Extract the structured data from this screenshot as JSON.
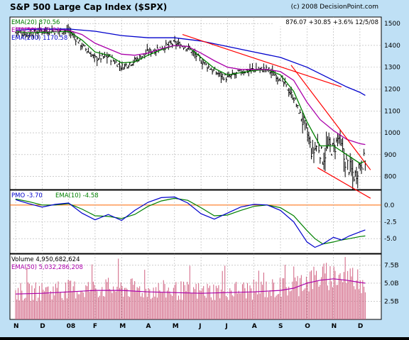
{
  "header": {
    "title": "S&P 500 Large Cap Index ($SPX)",
    "copyright": "(c) 2008 DecisionPoint.com",
    "quote": "876.07  +30.85  +3.6%  12/5/08"
  },
  "colors": {
    "background": "#bfe0f5",
    "plot_bg": "#ffffff",
    "price_bars": "#000000",
    "ema20": "#008000",
    "ema50": "#aa00aa",
    "ema200": "#0000cc",
    "trendline": "#ff0000",
    "pmo": "#0000cc",
    "pmo_signal": "#008000",
    "zero_line": "#ff6600",
    "volume": "#d06080",
    "volume_ema": "#aa00aa"
  },
  "chart_data": [
    {
      "type": "line",
      "panel": "price",
      "legend": [
        "EMA(20) 870.56",
        "EMA(50) 945.83",
        "EMA(200) 1170.58"
      ],
      "ylim": [
        740,
        1530
      ],
      "yticks": [
        800,
        900,
        1000,
        1100,
        1200,
        1300,
        1400,
        1500
      ],
      "ytick_labels": [
        "800",
        "900",
        "1000",
        "1100",
        "1200",
        "1300",
        "1400",
        "1500"
      ],
      "x_labels": [
        "N",
        "D",
        "08",
        "F",
        "M",
        "A",
        "M",
        "J",
        "J",
        "A",
        "S",
        "O",
        "N",
        "D"
      ],
      "x_label_months": [
        0,
        1,
        2,
        3,
        4,
        5,
        6,
        7,
        8,
        9,
        10,
        11,
        12,
        13
      ],
      "close_series": {
        "x": [
          0,
          0.5,
          1,
          1.5,
          2,
          2.5,
          3,
          3.5,
          4,
          4.5,
          5,
          5.5,
          6,
          6.5,
          7,
          7.5,
          8,
          8.5,
          9,
          9.5,
          10,
          10.5,
          11,
          11.2,
          11.4,
          11.6,
          11.8,
          12,
          12.2,
          12.4,
          12.6,
          12.8,
          13,
          13.2
        ],
        "values": [
          1460,
          1450,
          1470,
          1465,
          1470,
          1400,
          1340,
          1350,
          1300,
          1330,
          1370,
          1390,
          1410,
          1390,
          1330,
          1280,
          1250,
          1280,
          1290,
          1290,
          1250,
          1160,
          1000,
          900,
          950,
          880,
          940,
          920,
          980,
          880,
          840,
          800,
          860,
          876
        ]
      },
      "series": [
        {
          "name": "EMA(20)",
          "x": [
            0,
            0.5,
            1,
            1.5,
            2,
            2.5,
            3,
            3.5,
            4,
            4.5,
            5,
            5.5,
            6,
            6.5,
            7,
            7.5,
            8,
            8.5,
            9,
            9.5,
            10,
            10.5,
            11,
            11.5,
            12,
            12.5,
            13,
            13.2
          ],
          "values": [
            1465,
            1458,
            1460,
            1462,
            1465,
            1425,
            1370,
            1355,
            1320,
            1325,
            1355,
            1380,
            1400,
            1395,
            1345,
            1295,
            1265,
            1275,
            1285,
            1290,
            1265,
            1190,
            1050,
            940,
            940,
            900,
            860,
            870
          ]
        },
        {
          "name": "EMA(50)",
          "x": [
            0,
            1,
            2,
            2.5,
            3,
            3.5,
            4,
            4.5,
            5,
            5.5,
            6,
            6.5,
            7,
            7.5,
            8,
            8.5,
            9,
            9.5,
            10,
            10.5,
            11,
            11.5,
            12,
            12.5,
            13,
            13.2
          ],
          "values": [
            1480,
            1475,
            1470,
            1450,
            1410,
            1385,
            1360,
            1355,
            1365,
            1385,
            1400,
            1395,
            1365,
            1330,
            1300,
            1290,
            1290,
            1290,
            1280,
            1240,
            1140,
            1060,
            1010,
            970,
            950,
            946
          ]
        },
        {
          "name": "EMA(200)",
          "x": [
            0,
            1,
            2,
            3,
            4,
            5,
            6,
            7,
            8,
            9,
            10,
            11,
            12,
            12.5,
            13,
            13.2
          ],
          "values": [
            1470,
            1475,
            1475,
            1465,
            1445,
            1435,
            1435,
            1420,
            1395,
            1370,
            1345,
            1300,
            1240,
            1210,
            1185,
            1171
          ]
        }
      ],
      "trendlines": [
        {
          "x": [
            6.3,
            12.3
          ],
          "values": [
            1450,
            1210
          ]
        },
        {
          "x": [
            10.4,
            13.4
          ],
          "values": [
            1310,
            830
          ]
        },
        {
          "x": [
            11.4,
            13.4
          ],
          "values": [
            840,
            700
          ]
        }
      ]
    },
    {
      "type": "line",
      "panel": "pmo",
      "legend": [
        "PMO -3.70",
        "EMA(10) -4.58"
      ],
      "ylim": [
        -7.2,
        2.2
      ],
      "yticks": [
        0.0,
        -2.5,
        -5.0
      ],
      "ytick_labels": [
        "0.0",
        "-2.5",
        "-5.0"
      ],
      "series": [
        {
          "name": "PMO",
          "x": [
            0,
            0.5,
            1,
            1.5,
            2,
            2.5,
            3,
            3.5,
            4,
            4.5,
            5,
            5.5,
            6,
            6.5,
            7,
            7.5,
            8,
            8.5,
            9,
            9.5,
            10,
            10.5,
            11,
            11.3,
            11.6,
            12,
            12.3,
            12.6,
            13,
            13.2
          ],
          "values": [
            0.8,
            0.2,
            -0.3,
            0.1,
            0.3,
            -1.2,
            -2.2,
            -1.4,
            -2.3,
            -0.8,
            0.4,
            1.1,
            1.2,
            0.3,
            -1.3,
            -2.1,
            -1.2,
            -0.3,
            0.1,
            0.0,
            -0.8,
            -2.5,
            -5.5,
            -6.3,
            -5.8,
            -4.8,
            -5.2,
            -4.6,
            -4.0,
            -3.7
          ]
        },
        {
          "name": "EMA(10)",
          "x": [
            0,
            0.5,
            1,
            1.5,
            2,
            2.5,
            3,
            3.5,
            4,
            4.5,
            5,
            5.5,
            6,
            6.5,
            7,
            7.5,
            8,
            8.5,
            9,
            9.5,
            10,
            10.5,
            11,
            11.3,
            11.6,
            12,
            12.3,
            12.6,
            13,
            13.2
          ],
          "values": [
            0.9,
            0.5,
            0.0,
            0.0,
            0.2,
            -0.6,
            -1.6,
            -1.7,
            -2.0,
            -1.4,
            -0.2,
            0.6,
            1.0,
            0.7,
            -0.4,
            -1.6,
            -1.5,
            -0.8,
            -0.2,
            0.0,
            -0.4,
            -1.6,
            -3.8,
            -5.0,
            -5.8,
            -5.5,
            -5.2,
            -5.0,
            -4.7,
            -4.6
          ]
        }
      ]
    },
    {
      "type": "bar",
      "panel": "volume",
      "legend": [
        "Volume  4,950,682,624",
        "EMA(50) 5,032,286,208"
      ],
      "ylim": [
        0,
        9
      ],
      "yticks": [
        2.5,
        5.0,
        7.5
      ],
      "ytick_labels": [
        "2.5B",
        "5.0B",
        "7.5B"
      ],
      "volume_ema": {
        "x": [
          0,
          1,
          2,
          3,
          4,
          5,
          6,
          7,
          8,
          9,
          10,
          10.5,
          11,
          11.5,
          12,
          12.5,
          13,
          13.2
        ],
        "values": [
          3.5,
          3.6,
          3.8,
          4.0,
          4.0,
          3.8,
          3.7,
          3.6,
          3.7,
          3.8,
          4.0,
          4.3,
          5.0,
          5.4,
          5.6,
          5.4,
          5.1,
          5.0
        ]
      }
    }
  ]
}
